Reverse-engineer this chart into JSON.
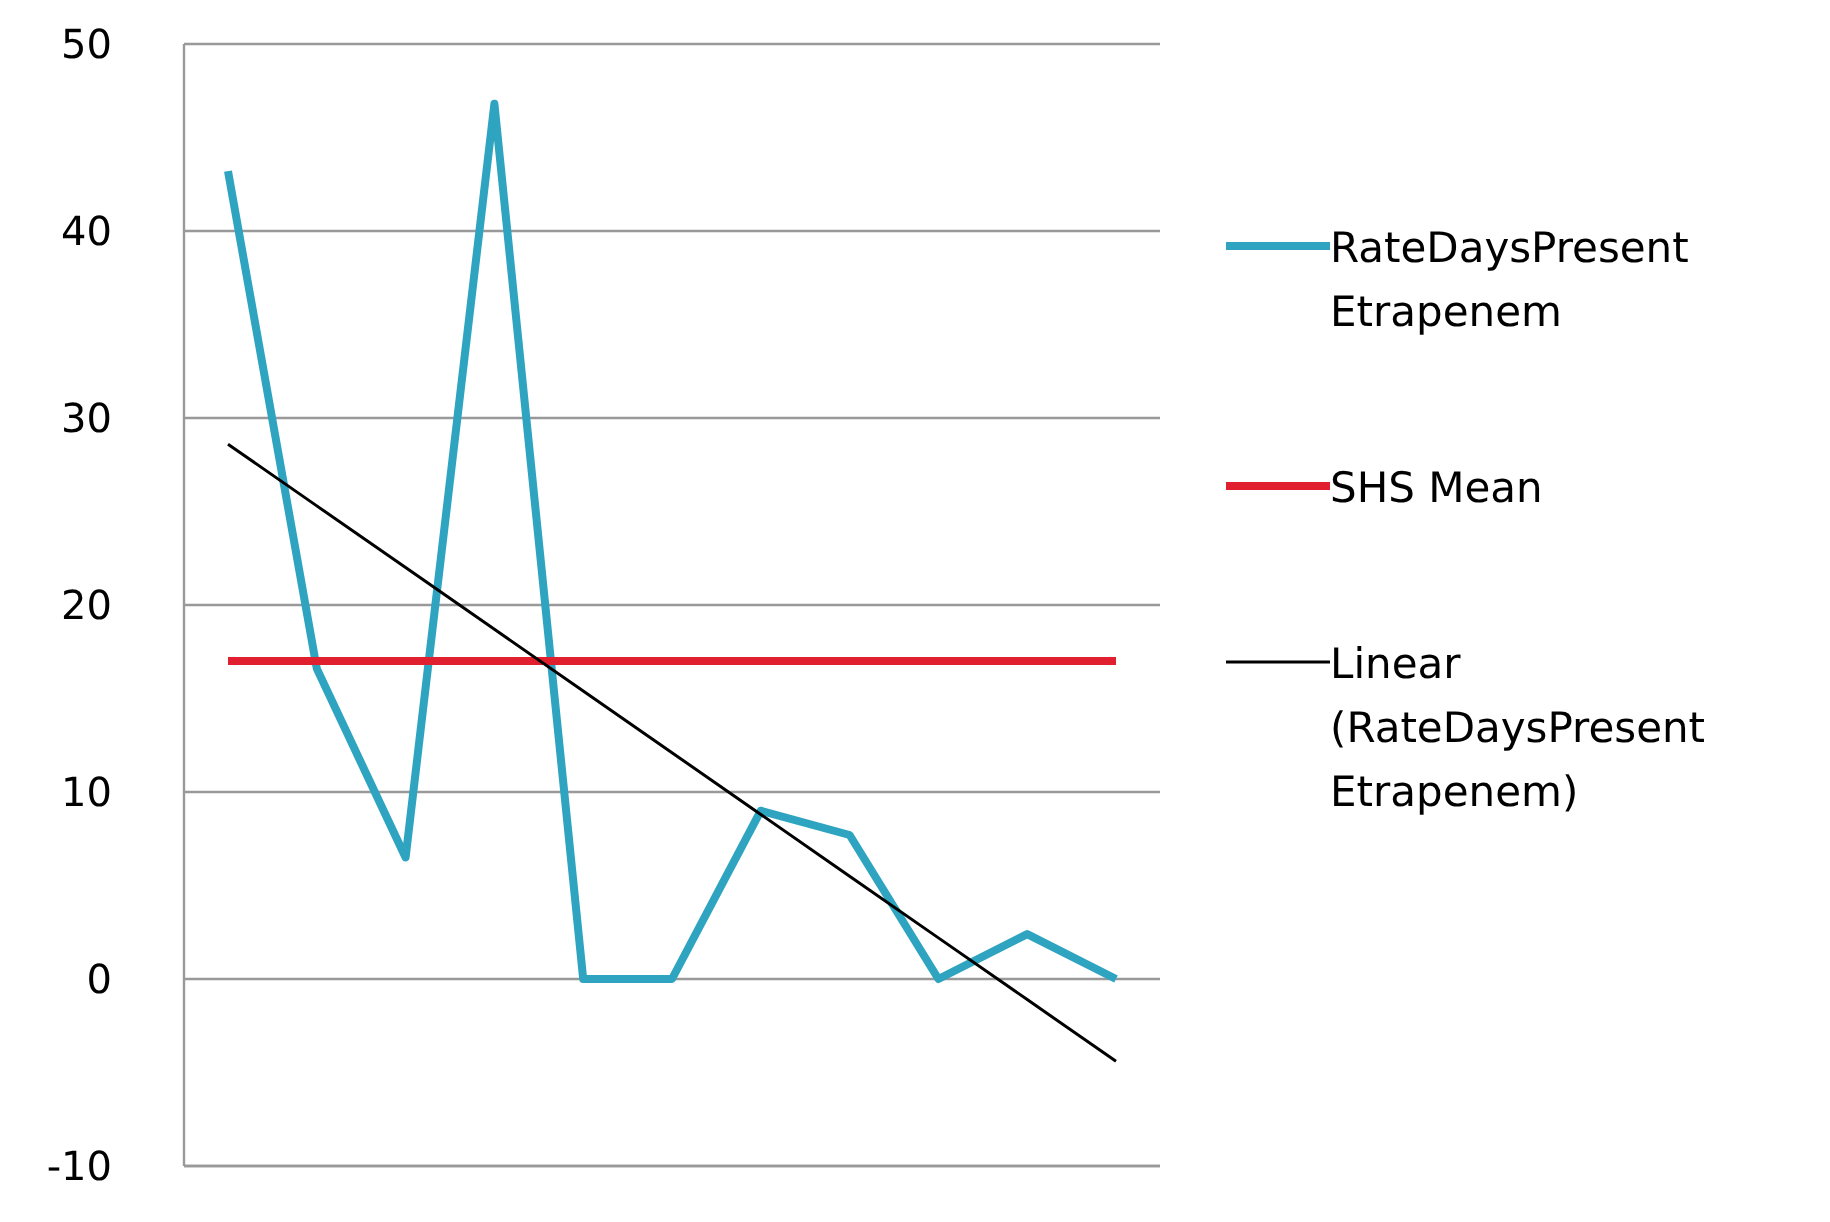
{
  "chart_data": {
    "type": "line",
    "categories": [
      null,
      null,
      null,
      null,
      null,
      null,
      null,
      null,
      null,
      null,
      null
    ],
    "series": [
      {
        "name": "RateDaysPresent Etrapenem",
        "color": "#2fa4c0",
        "values": [
          43.2,
          16.6,
          6.5,
          46.8,
          0,
          0,
          9.0,
          7.7,
          0,
          2.4,
          0
        ]
      },
      {
        "name": "SHS Mean",
        "color": "#e0202e",
        "values": [
          17,
          17,
          17,
          17,
          17,
          17,
          17,
          17,
          17,
          17,
          17
        ]
      },
      {
        "name": "Linear (RateDaysPresent Etrapenem)",
        "color": "#000000",
        "values": [
          28.6,
          25.3,
          22.0,
          18.7,
          15.4,
          12.1,
          8.8,
          5.5,
          2.2,
          -1.1,
          -4.4
        ]
      }
    ],
    "ylim": [
      -10,
      50
    ],
    "yticks": [
      -10,
      0,
      10,
      20,
      30,
      40,
      50
    ],
    "grid": "y",
    "legend": "right",
    "marker": "none",
    "line_style": "solid"
  }
}
